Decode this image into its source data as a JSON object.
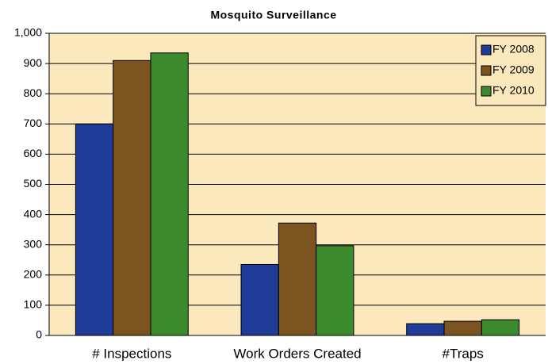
{
  "chart_data": {
    "type": "bar",
    "title": "Mosquito Surveillance",
    "categories": [
      "# Inspections",
      "Work Orders Created",
      "#Traps"
    ],
    "series": [
      {
        "name": "FY 2008",
        "color": "#1f3c99",
        "values": [
          700,
          235,
          39
        ]
      },
      {
        "name": "FY 2009",
        "color": "#7b5420",
        "values": [
          910,
          372,
          47
        ]
      },
      {
        "name": "FY 2010",
        "color": "#3b8a2e",
        "values": [
          935,
          297,
          52
        ]
      }
    ],
    "ylim": [
      0,
      1000
    ],
    "yticks": [
      0,
      100,
      200,
      300,
      400,
      500,
      600,
      700,
      800,
      900,
      {
        "value": 1000,
        "label": "1,000"
      }
    ],
    "grid": true,
    "legend": "top-right"
  }
}
